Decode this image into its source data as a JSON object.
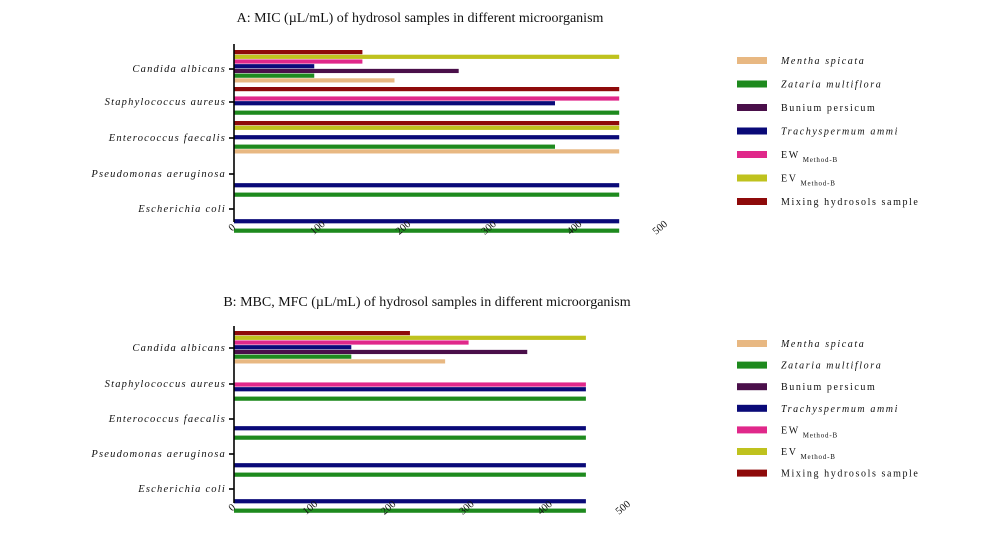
{
  "chart_data": [
    {
      "type": "bar",
      "orientation": "horizontal",
      "title": "A: MIC (µL/mL) of hydrosol samples in different microorganism",
      "xlim": [
        0,
        500
      ],
      "xticks": [
        0,
        100,
        200,
        300,
        400,
        500
      ],
      "legend_position": "right",
      "categories": [
        "Candida albicans",
        "Staphylococcus aureus",
        "Enterococcus faecalis",
        "Pseudomonas aeruginosa",
        "Escherichia coli"
      ],
      "series": [
        {
          "name": "Mentha spicata",
          "values": [
            187.5,
            0,
            450,
            0,
            0
          ]
        },
        {
          "name": "Zataria multiflora",
          "values": [
            93.75,
            450,
            375,
            450,
            450
          ]
        },
        {
          "name": "Bunium persicum",
          "values": [
            262.5,
            0,
            0,
            0,
            0
          ]
        },
        {
          "name": "Trachyspermum ammi",
          "values": [
            93.75,
            375,
            450,
            450,
            450
          ]
        },
        {
          "name": "EW Method-B",
          "values": [
            150,
            450,
            0,
            0,
            0
          ]
        },
        {
          "name": "EV Method-B",
          "values": [
            450,
            0,
            450,
            0,
            0
          ]
        },
        {
          "name": "Mixing hydrosols sample",
          "values": [
            150,
            450,
            450,
            0,
            0
          ]
        }
      ]
    },
    {
      "type": "bar",
      "orientation": "horizontal",
      "title": "B: MBC, MFC (µL/mL) of hydrosol samples in different microorganism",
      "xlim": [
        0,
        500
      ],
      "xticks": [
        0,
        100,
        200,
        300,
        400,
        500
      ],
      "legend_position": "right",
      "categories": [
        "Candida albicans",
        "Staphylococcus aureus",
        "Enterococcus faecalis",
        "Pseudomonas aeruginosa",
        "Escherichia coli"
      ],
      "series": [
        {
          "name": "Mentha spicata",
          "values": [
            270,
            0,
            0,
            0,
            0
          ]
        },
        {
          "name": "Zataria multiflora",
          "values": [
            150,
            450,
            450,
            450,
            450
          ]
        },
        {
          "name": "Bunium persicum",
          "values": [
            375,
            0,
            0,
            0,
            0
          ]
        },
        {
          "name": "Trachyspermum ammi",
          "values": [
            150,
            450,
            450,
            450,
            450
          ]
        },
        {
          "name": "EW Method-B",
          "values": [
            300,
            450,
            0,
            0,
            0
          ]
        },
        {
          "name": "EV Method-B",
          "values": [
            450,
            0,
            0,
            0,
            0
          ]
        },
        {
          "name": "Mixing hydrosols sample",
          "values": [
            225,
            0,
            0,
            0,
            0
          ]
        }
      ]
    }
  ],
  "legend": [
    {
      "main": "Mentha spicata",
      "sub": "",
      "italic": true,
      "color": "#E8B882"
    },
    {
      "main": "Zataria multiflora",
      "sub": "",
      "italic": true,
      "color": "#1E8A1E"
    },
    {
      "main": "Bunium persicum",
      "sub": "",
      "italic": false,
      "color": "#4A0F4A"
    },
    {
      "main": "Trachyspermum ammi",
      "sub": "",
      "italic": true,
      "color": "#0A0A78"
    },
    {
      "main": "EW",
      "sub": "Method-B",
      "italic": false,
      "color": "#E0288A"
    },
    {
      "main": "EV",
      "sub": "Method-B",
      "italic": false,
      "color": "#BFC21E"
    },
    {
      "main": "Mixing hydrosols sample",
      "sub": "",
      "italic": false,
      "color": "#8E0A0A"
    }
  ]
}
